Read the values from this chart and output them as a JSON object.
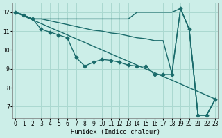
{
  "xlabel": "Humidex (Indice chaleur)",
  "bg_color": "#cceee8",
  "grid_color": "#aad8d0",
  "line_color": "#1a6b6b",
  "xlim": [
    -0.3,
    23.3
  ],
  "ylim": [
    6.4,
    12.5
  ],
  "xticks": [
    0,
    1,
    2,
    3,
    4,
    5,
    6,
    7,
    8,
    9,
    10,
    11,
    12,
    13,
    14,
    15,
    16,
    17,
    18,
    19,
    20,
    21,
    22,
    23
  ],
  "yticks": [
    7,
    8,
    9,
    10,
    11,
    12
  ],
  "lw": 1.0,
  "ms": 2.5,
  "line_top": {
    "x": [
      0,
      1,
      2,
      3,
      4,
      5,
      6,
      7,
      8,
      9,
      10,
      11,
      12,
      13,
      14,
      15,
      16,
      17,
      18,
      19,
      20,
      21,
      22,
      23
    ],
    "y": [
      12.0,
      11.85,
      11.65,
      11.65,
      11.65,
      11.65,
      11.65,
      11.65,
      11.65,
      11.65,
      11.65,
      11.65,
      11.65,
      11.65,
      12.0,
      12.0,
      12.0,
      12.0,
      12.0,
      12.2,
      11.1,
      6.55,
      6.55,
      7.4
    ],
    "markers": false
  },
  "line_mid": {
    "x": [
      0,
      1,
      2,
      3,
      4,
      5,
      6,
      7,
      8,
      9,
      10,
      11,
      12,
      13,
      14,
      15,
      16,
      17,
      18,
      19,
      20,
      21,
      22,
      23
    ],
    "y": [
      12.0,
      11.85,
      11.65,
      11.65,
      11.55,
      11.45,
      11.35,
      11.25,
      11.15,
      11.05,
      11.0,
      10.9,
      10.85,
      10.75,
      10.65,
      10.6,
      10.5,
      10.5,
      8.75,
      12.2,
      11.1,
      6.55,
      6.55,
      7.4
    ],
    "markers": false
  },
  "line_bot": {
    "x": [
      0,
      1,
      2,
      3,
      4,
      5,
      6,
      7,
      8,
      9,
      10,
      11,
      12,
      13,
      14,
      15,
      16,
      17,
      18,
      19,
      20,
      21,
      22,
      23
    ],
    "y": [
      12.0,
      11.85,
      11.65,
      11.1,
      10.95,
      10.8,
      10.65,
      9.6,
      9.15,
      9.35,
      9.5,
      9.45,
      9.35,
      9.2,
      9.15,
      9.15,
      8.7,
      8.7,
      8.7,
      12.2,
      11.1,
      6.55,
      6.55,
      7.4
    ],
    "markers": true
  },
  "line_diag": {
    "x": [
      0,
      23
    ],
    "y": [
      12.0,
      7.4
    ],
    "markers": false
  }
}
